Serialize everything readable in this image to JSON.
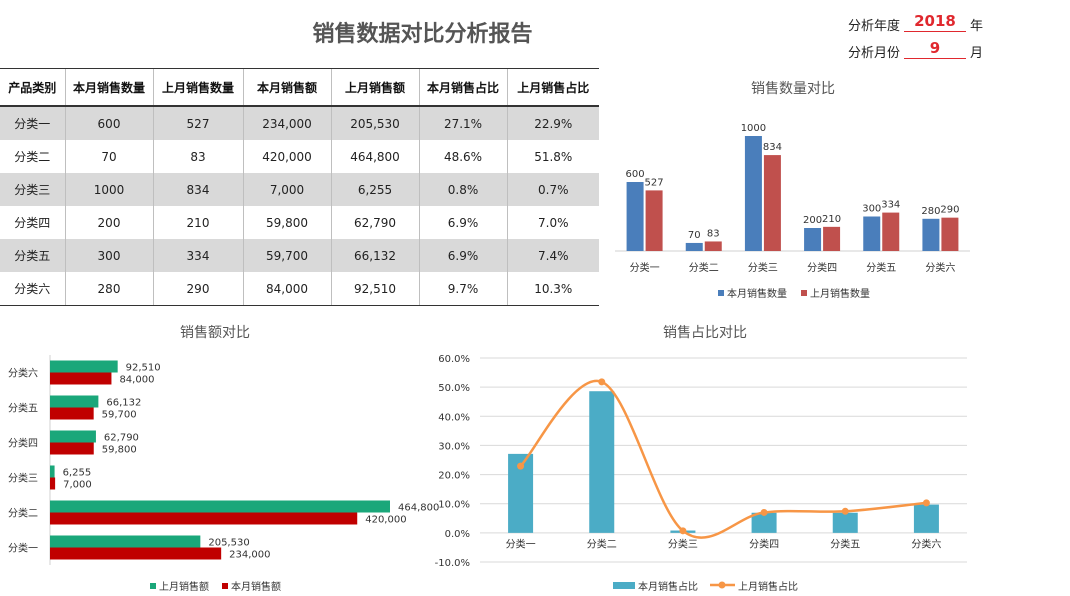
{
  "report_title": "销售数据对比分析报告",
  "params": {
    "year_label": "分析年度",
    "year_value": "2018",
    "year_unit": "年",
    "month_label": "分析月份",
    "month_value": "9",
    "month_unit": "月"
  },
  "table": {
    "headers": [
      "产品类别",
      "本月销售数量",
      "上月销售数量",
      "本月销售额",
      "上月销售额",
      "本月销售占比",
      "上月销售占比"
    ],
    "rows": [
      [
        "分类一",
        "600",
        "527",
        "234,000",
        "205,530",
        "27.1%",
        "22.9%"
      ],
      [
        "分类二",
        "70",
        "83",
        "420,000",
        "464,800",
        "48.6%",
        "51.8%"
      ],
      [
        "分类三",
        "1000",
        "834",
        "7,000",
        "6,255",
        "0.8%",
        "0.7%"
      ],
      [
        "分类四",
        "200",
        "210",
        "59,800",
        "62,790",
        "6.9%",
        "7.0%"
      ],
      [
        "分类五",
        "300",
        "334",
        "59,700",
        "66,132",
        "6.9%",
        "7.4%"
      ],
      [
        "分类六",
        "280",
        "290",
        "84,000",
        "92,510",
        "9.7%",
        "10.3%"
      ]
    ]
  },
  "chart_data": [
    {
      "type": "bar",
      "title": "销售数量对比",
      "categories": [
        "分类一",
        "分类二",
        "分类三",
        "分类四",
        "分类五",
        "分类六"
      ],
      "series": [
        {
          "name": "本月销售数量",
          "values": [
            600,
            70,
            1000,
            200,
            300,
            280
          ],
          "color": "#4a7ebb"
        },
        {
          "name": "上月销售数量",
          "values": [
            527,
            83,
            834,
            210,
            334,
            290
          ],
          "color": "#c0504d"
        }
      ],
      "value_labels": true,
      "legend_position": "bottom",
      "grid": false
    },
    {
      "type": "bar",
      "orientation": "horizontal",
      "title": "销售额对比",
      "categories": [
        "分类一",
        "分类二",
        "分类三",
        "分类四",
        "分类五",
        "分类六"
      ],
      "series": [
        {
          "name": "上月销售额",
          "values": [
            205530,
            464800,
            6255,
            62790,
            66132,
            92510
          ],
          "labels": [
            "205,530",
            "464,800",
            "6,255",
            "62,790",
            "66,132",
            "92,510"
          ],
          "color": "#1aa77a"
        },
        {
          "name": "本月销售额",
          "values": [
            234000,
            420000,
            7000,
            59800,
            59700,
            84000
          ],
          "labels": [
            "234,000",
            "420,000",
            "7,000",
            "59,800",
            "59,700",
            "84,000"
          ],
          "color": "#c00000"
        }
      ],
      "value_labels": true,
      "legend_position": "bottom",
      "grid": false
    },
    {
      "type": "bar",
      "combo": "bar+line",
      "title": "销售占比对比",
      "categories": [
        "分类一",
        "分类二",
        "分类三",
        "分类四",
        "分类五",
        "分类六"
      ],
      "series": [
        {
          "name": "本月销售占比",
          "kind": "bar",
          "values": [
            27.1,
            48.6,
            0.8,
            6.9,
            6.9,
            9.7
          ],
          "color": "#4bacc6"
        },
        {
          "name": "上月销售占比",
          "kind": "line",
          "values": [
            22.9,
            51.8,
            0.7,
            7.0,
            7.4,
            10.3
          ],
          "color": "#f79646"
        }
      ],
      "ylim": [
        -10,
        60
      ],
      "yticks": [
        "-10.0%",
        "0.0%",
        "10.0%",
        "20.0%",
        "30.0%",
        "40.0%",
        "50.0%",
        "60.0%"
      ],
      "grid": true,
      "legend_position": "bottom"
    }
  ]
}
